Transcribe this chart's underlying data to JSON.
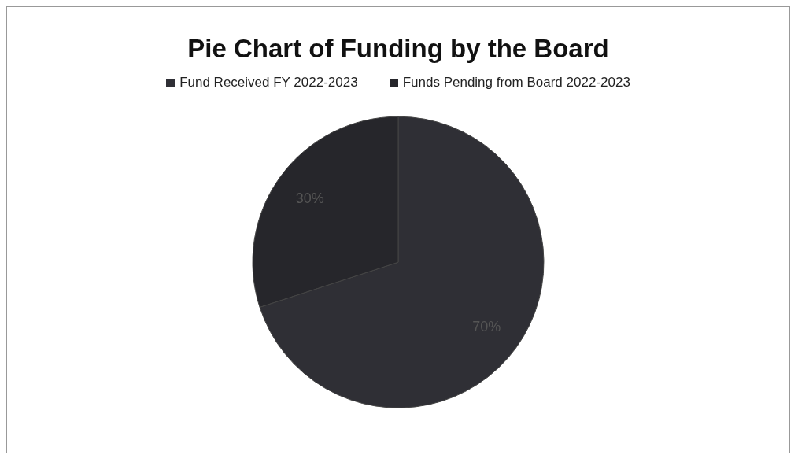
{
  "chart_data": {
    "type": "pie",
    "title": "Pie Chart of Funding by the Board",
    "categories": [
      "Fund Received FY 2022-2023",
      "Funds Pending from Board 2022-2023"
    ],
    "values": [
      70,
      30
    ],
    "colors": [
      "#2f2f35",
      "#26262b"
    ],
    "value_labels": [
      "70%",
      "30%"
    ],
    "legend": "top"
  }
}
